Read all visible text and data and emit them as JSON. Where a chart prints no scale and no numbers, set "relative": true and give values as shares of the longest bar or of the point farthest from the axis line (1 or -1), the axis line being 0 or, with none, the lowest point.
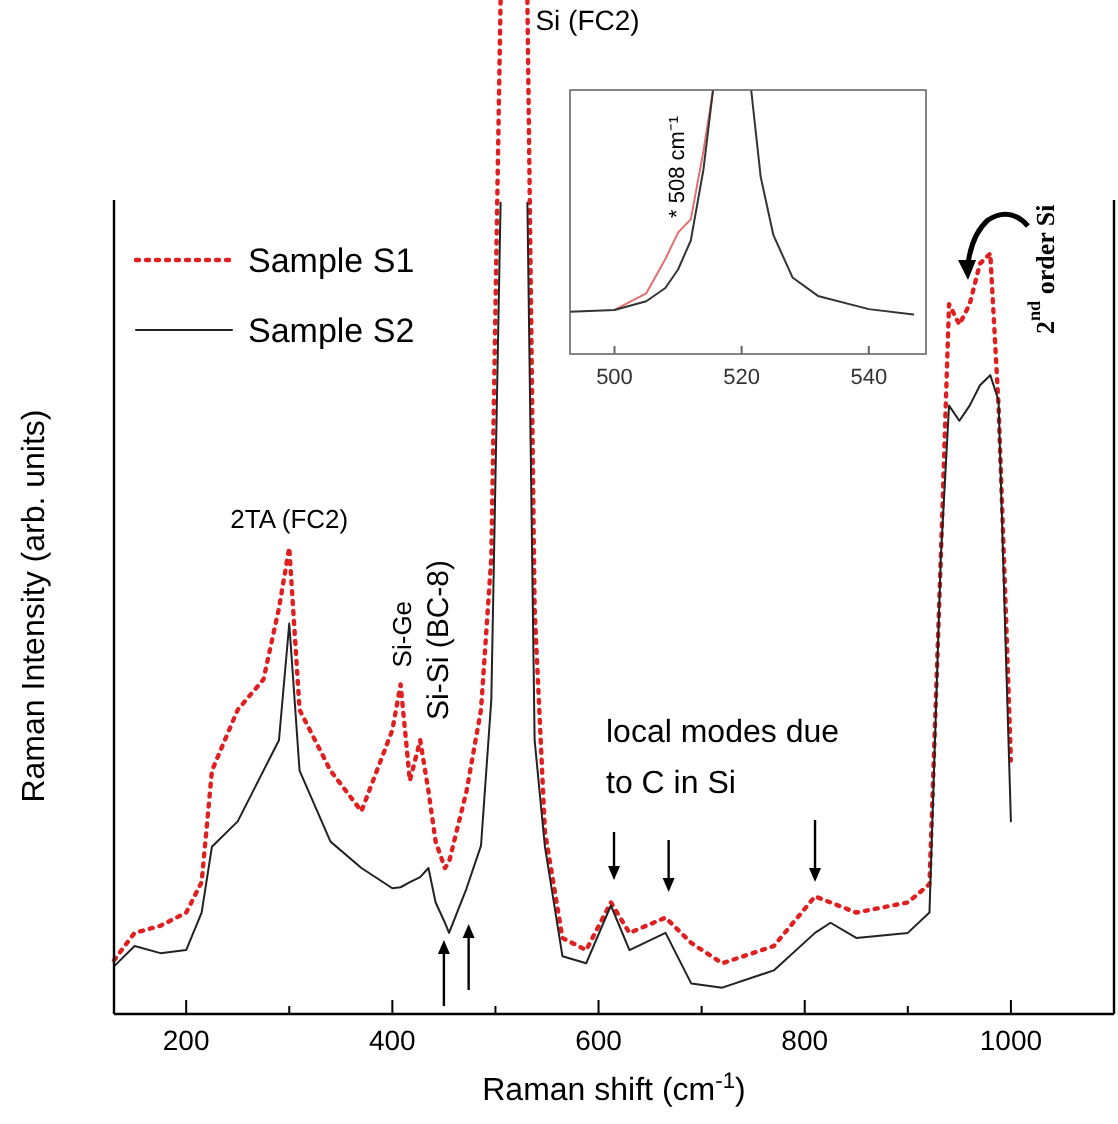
{
  "chart_data": [
    {
      "type": "line",
      "relative": true,
      "xlabel": "Raman shift (cm$^{-1}$)",
      "ylabel": "Raman Intensity (arb. units)",
      "xlim": [
        130,
        1100
      ],
      "xticks": [
        200,
        {
          "value": 300,
          "label": null
        },
        400,
        {
          "value": 500,
          "label": null
        },
        600,
        {
          "value": 700,
          "label": null
        },
        800,
        {
          "value": 900,
          "label": null
        },
        1000
      ],
      "legend": "top left",
      "marker": "none",
      "grid": false,
      "x": [
        130,
        150,
        175,
        200,
        215,
        225,
        250,
        275,
        290,
        300,
        310,
        340,
        370,
        400,
        408,
        417,
        427,
        435,
        442,
        451,
        455,
        472,
        486,
        496,
        505,
        518,
        531,
        538,
        548,
        565,
        588,
        612,
        630,
        665,
        690,
        720,
        770,
        810,
        825,
        850,
        900,
        921,
        932,
        940,
        950,
        960,
        970,
        980,
        988,
        995,
        1000
      ],
      "series": [
        {
          "name": "Sample S1",
          "color": "#e02020",
          "line_style": "dotted",
          "values": [
            0.053,
            0.08,
            0.087,
            0.1,
            0.13,
            0.24,
            0.3,
            0.33,
            0.4,
            0.46,
            0.3,
            0.24,
            0.2,
            0.28,
            0.325,
            0.23,
            0.27,
            0.22,
            0.17,
            0.144,
            0.15,
            0.22,
            0.3,
            0.45,
            1,
            null,
            1,
            0.4,
            0.18,
            0.075,
            0.063,
            0.11,
            0.08,
            0.095,
            0.07,
            0.05,
            0.067,
            0.116,
            0.11,
            0.1,
            0.11,
            0.128,
            0.45,
            0.7,
            0.68,
            0.7,
            0.74,
            0.75,
            0.6,
            0.4,
            0.25
          ]
        },
        {
          "name": "Sample S2",
          "color": "#222222",
          "line_style": "solid",
          "values": [
            0.047,
            0.067,
            0.06,
            0.063,
            0.1,
            0.165,
            0.19,
            0.24,
            0.27,
            0.385,
            0.24,
            0.17,
            0.144,
            0.124,
            0.125,
            0.13,
            0.135,
            0.144,
            0.11,
            0.09,
            0.08,
            0.124,
            0.166,
            0.31,
            0.8,
            null,
            0.8,
            0.27,
            0.165,
            0.057,
            0.05,
            0.107,
            0.063,
            0.08,
            0.03,
            0.026,
            0.043,
            0.08,
            0.09,
            0.075,
            0.08,
            0.1,
            0.45,
            0.6,
            0.585,
            0.6,
            0.62,
            0.63,
            0.605,
            0.36,
            0.19
          ]
        }
      ],
      "annotations": [
        {
          "text": "Si (FC2)",
          "x": 531,
          "y": 0.97
        },
        {
          "text": "2TA (FC2)",
          "x": 300,
          "y": 0.46
        },
        {
          "text": "Si-Ge",
          "x": 408,
          "y": 0.33
        },
        "Si-Si (BC-8)",
        "local modes due to C in Si",
        "2$^{nd}$ order Si"
      ]
    },
    {
      "type": "line",
      "relative": true,
      "xlim": [
        493,
        549
      ],
      "xticks": [
        500,
        520,
        540
      ],
      "marker": "none",
      "grid": false,
      "x": [
        493,
        500,
        505,
        508,
        510,
        512,
        514,
        515.5,
        518,
        521.5,
        523,
        525,
        528,
        532,
        540,
        547
      ],
      "series": [
        {
          "color": "#e07070",
          "line_style": "solid",
          "values": [
            null,
            0.167,
            0.23,
            0.36,
            0.46,
            0.51,
            0.77,
            1,
            null,
            null,
            null,
            null,
            null,
            null,
            null,
            null
          ]
        },
        {
          "color": "#333333",
          "line_style": "solid",
          "values": [
            0.16,
            0.167,
            0.2,
            0.25,
            0.32,
            0.43,
            0.7,
            1,
            null,
            1,
            0.67,
            0.45,
            0.29,
            0.22,
            0.17,
            0.15
          ]
        }
      ],
      "annotations": [
        {
          "text": "* 508 cm⁻¹",
          "x": 510,
          "y": 0.5
        }
      ]
    }
  ]
}
